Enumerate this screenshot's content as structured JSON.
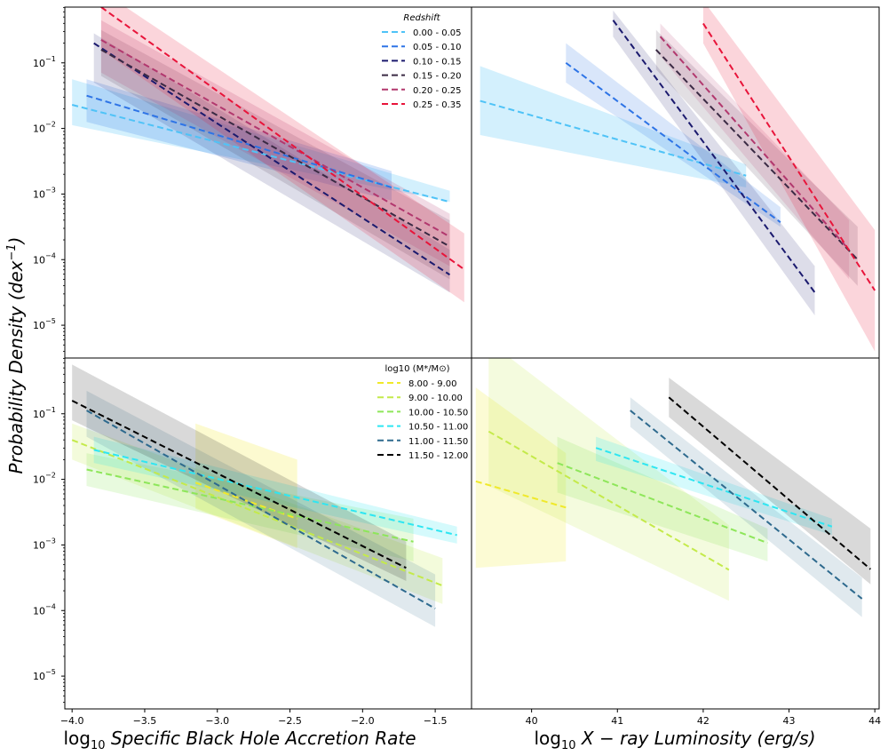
{
  "figure": {
    "ylabel_main": "Probability Density (dex",
    "ylabel_sup": "−1",
    "ylabel_close": ")",
    "xlabel_left_prefix": "log",
    "xlabel_left_sub": "10",
    "xlabel_left_text": " Specific Black Hole Accretion Rate",
    "xlabel_right_prefix": "log",
    "xlabel_right_sub": "10",
    "xlabel_right_text": " X − ray Luminosity (erg/s)"
  },
  "chart_data": [
    {
      "id": "tl",
      "type": "line",
      "xlim": [
        -4.05,
        -1.25
      ],
      "ylim_log10": [
        -5.5,
        -0.15
      ],
      "yticks_exp": [
        -5,
        -4,
        -3,
        -2,
        -1
      ],
      "xticks": [],
      "legend": {
        "title": "Redshift",
        "title_style": "italic",
        "location": "top-right",
        "entries": [
          "0.00 - 0.05",
          "0.05 - 0.10",
          "0.10 - 0.15",
          "0.15 - 0.20",
          "0.20 - 0.25",
          "0.25 - 0.35"
        ]
      },
      "series": [
        {
          "name": "0.00 - 0.05",
          "color": "#4fc3f7",
          "x": [
            -4.0,
            -1.4
          ],
          "log10_y": [
            -1.64,
            -3.12
          ],
          "band_lo": [
            -1.95,
            -3.12
          ],
          "band_hi": [
            -1.25,
            -2.95
          ],
          "band_alpha": 0.25
        },
        {
          "name": "0.05 - 0.10",
          "color": "#2e74e6",
          "x": [
            -3.9,
            -1.8
          ],
          "log10_y": [
            -1.5,
            -2.9
          ],
          "band_lo": [
            -1.9,
            -3.1
          ],
          "band_hi": [
            -1.25,
            -2.65
          ],
          "band_alpha": 0.2
        },
        {
          "name": "0.10 - 0.15",
          "color": "#1b1a6e",
          "x": [
            -3.85,
            -1.4
          ],
          "log10_y": [
            -0.7,
            -4.23
          ],
          "band_lo": [
            -1.3,
            -4.5
          ],
          "band_hi": [
            -0.55,
            -3.85
          ],
          "band_alpha": 0.15
        },
        {
          "name": "0.15 - 0.20",
          "color": "#3a2a44",
          "x": [
            -3.8,
            -1.4
          ],
          "log10_y": [
            -0.8,
            -3.8
          ],
          "band_lo": [
            -1.2,
            -4.3
          ],
          "band_hi": [
            -0.5,
            -3.4
          ],
          "band_alpha": 0.15
        },
        {
          "name": "0.20 - 0.25",
          "color": "#b2386e",
          "x": [
            -3.8,
            -1.4
          ],
          "log10_y": [
            -0.65,
            -3.65
          ],
          "band_lo": [
            -1.15,
            -4.1
          ],
          "band_hi": [
            -0.35,
            -3.3
          ],
          "band_alpha": 0.18
        },
        {
          "name": "0.25 - 0.35",
          "color": "#e8143a",
          "x": [
            -3.8,
            -1.3
          ],
          "log10_y": [
            -0.15,
            -4.15
          ],
          "band_lo": [
            -0.8,
            -4.65
          ],
          "band_hi": [
            0.1,
            -3.6
          ],
          "band_alpha": 0.18
        }
      ]
    },
    {
      "id": "tr",
      "type": "line",
      "xlim": [
        39.3,
        44.05
      ],
      "ylim_log10": [
        -5.5,
        -0.15
      ],
      "yticks_exp": [],
      "xticks": [],
      "series": [
        {
          "name": "0.00 - 0.05",
          "color": "#4fc3f7",
          "x": [
            39.4,
            42.5
          ],
          "log10_y": [
            -1.58,
            -2.72
          ],
          "band_lo": [
            -2.1,
            -2.9
          ],
          "band_hi": [
            -1.05,
            -2.55
          ],
          "band_alpha": 0.25
        },
        {
          "name": "0.05 - 0.10",
          "color": "#2e74e6",
          "x": [
            40.4,
            42.9
          ],
          "log10_y": [
            -1.0,
            -3.43
          ],
          "band_lo": [
            -1.3,
            -3.5
          ],
          "band_hi": [
            -0.7,
            -3.2
          ],
          "band_alpha": 0.18
        },
        {
          "name": "0.10 - 0.15",
          "color": "#1b1a6e",
          "x": [
            40.95,
            43.3
          ],
          "log10_y": [
            -0.35,
            -4.5
          ],
          "band_lo": [
            -0.6,
            -4.85
          ],
          "band_hi": [
            -0.2,
            -4.1
          ],
          "band_alpha": 0.15
        },
        {
          "name": "0.15 - 0.20",
          "color": "#3a2a44",
          "x": [
            41.45,
            43.8
          ],
          "log10_y": [
            -0.8,
            -4.0
          ],
          "band_lo": [
            -1.1,
            -4.4
          ],
          "band_hi": [
            -0.5,
            -3.5
          ],
          "band_alpha": 0.15
        },
        {
          "name": "0.20 - 0.25",
          "color": "#b2386e",
          "x": [
            41.5,
            43.7
          ],
          "log10_y": [
            -0.6,
            -3.85
          ],
          "band_lo": [
            -0.9,
            -4.3
          ],
          "band_hi": [
            -0.4,
            -3.4
          ],
          "band_alpha": 0.15
        },
        {
          "name": "0.25 - 0.35",
          "color": "#e8143a",
          "x": [
            42.0,
            44.0
          ],
          "log10_y": [
            -0.4,
            -4.47
          ],
          "band_lo": [
            -0.7,
            -5.4
          ],
          "band_hi": [
            -0.05,
            -3.55
          ],
          "band_alpha": 0.18
        }
      ]
    },
    {
      "id": "bl",
      "type": "line",
      "xlim": [
        -4.05,
        -1.25
      ],
      "ylim_log10": [
        -5.5,
        -0.15
      ],
      "yticks_exp": [
        -5,
        -4,
        -3,
        -2,
        -1
      ],
      "xticks": [
        -4.0,
        -3.5,
        -3.0,
        -2.5,
        -2.0,
        -1.5
      ],
      "xtick_labels": [
        "−4.0",
        "−3.5",
        "−3.0",
        "−2.5",
        "−2.0",
        "−1.5"
      ],
      "legend": {
        "title": "log10 (M*/M⊙)",
        "location": "top-right",
        "entries": [
          "8.00 - 9.00",
          "9.00 - 10.00",
          "10.00 - 10.50",
          "10.50 - 11.00",
          "11.00 - 11.50",
          "11.50 - 12.00"
        ]
      },
      "series": [
        {
          "name": "8.00 - 9.00",
          "color": "#f0e92a",
          "x": [
            -3.15,
            -2.45
          ],
          "log10_y": [
            -2.05,
            -2.6
          ],
          "band_lo": [
            -2.45,
            -3.05
          ],
          "band_hi": [
            -1.15,
            -1.7
          ],
          "band_alpha": 0.22
        },
        {
          "name": "9.00 - 10.00",
          "color": "#c4ea4a",
          "x": [
            -4.0,
            -1.45
          ],
          "log10_y": [
            -1.4,
            -3.62
          ],
          "band_lo": [
            -1.7,
            -3.9
          ],
          "band_hi": [
            -1.15,
            -3.2
          ],
          "band_alpha": 0.2
        },
        {
          "name": "10.00 - 10.50",
          "color": "#8ee65a",
          "x": [
            -3.9,
            -1.65
          ],
          "log10_y": [
            -1.85,
            -2.95
          ],
          "band_lo": [
            -2.1,
            -3.25
          ],
          "band_hi": [
            -1.6,
            -2.6
          ],
          "band_alpha": 0.2
        },
        {
          "name": "10.50 - 11.00",
          "color": "#2ee6f2",
          "x": [
            -3.85,
            -1.35
          ],
          "log10_y": [
            -1.55,
            -2.85
          ],
          "band_lo": [
            -1.75,
            -2.98
          ],
          "band_hi": [
            -1.35,
            -2.72
          ],
          "band_alpha": 0.2
        },
        {
          "name": "11.00 - 11.50",
          "color": "#2e6a8e",
          "x": [
            -3.9,
            -1.5
          ],
          "log10_y": [
            -0.95,
            -3.97
          ],
          "band_lo": [
            -1.35,
            -4.25
          ],
          "band_hi": [
            -0.65,
            -3.45
          ],
          "band_alpha": 0.15
        },
        {
          "name": "11.50 - 12.00",
          "color": "#000000",
          "x": [
            -4.0,
            -1.7
          ],
          "log10_y": [
            -0.8,
            -3.35
          ],
          "band_lo": [
            -1.1,
            -3.55
          ],
          "band_hi": [
            -0.25,
            -2.95
          ],
          "band_alpha": 0.15
        }
      ]
    },
    {
      "id": "br",
      "type": "line",
      "xlim": [
        39.3,
        44.05
      ],
      "ylim_log10": [
        -5.5,
        -0.15
      ],
      "yticks_exp": [],
      "xticks": [
        40,
        41,
        42,
        43,
        44
      ],
      "xtick_labels": [
        "40",
        "41",
        "42",
        "43",
        "44"
      ],
      "series": [
        {
          "name": "8.00 - 9.00",
          "color": "#f0e92a",
          "x": [
            39.35,
            40.4
          ],
          "log10_y": [
            -2.03,
            -2.43
          ],
          "band_lo": [
            -3.35,
            -3.25
          ],
          "band_hi": [
            -0.6,
            -1.6
          ],
          "band_alpha": 0.2
        },
        {
          "name": "9.00 - 10.00",
          "color": "#c4ea4a",
          "x": [
            39.5,
            42.3
          ],
          "log10_y": [
            -1.27,
            -3.38
          ],
          "band_lo": [
            -2.1,
            -3.85
          ],
          "band_hi": [
            0.1,
            -2.7
          ],
          "band_alpha": 0.18
        },
        {
          "name": "10.00 - 10.50",
          "color": "#8ee65a",
          "x": [
            40.3,
            42.75
          ],
          "log10_y": [
            -1.75,
            -2.97
          ],
          "band_lo": [
            -2.2,
            -3.25
          ],
          "band_hi": [
            -1.35,
            -2.75
          ],
          "band_alpha": 0.2
        },
        {
          "name": "10.50 - 11.00",
          "color": "#2ee6f2",
          "x": [
            40.75,
            43.5
          ],
          "log10_y": [
            -1.52,
            -2.72
          ],
          "band_lo": [
            -1.72,
            -2.85
          ],
          "band_hi": [
            -1.35,
            -2.6
          ],
          "band_alpha": 0.2
        },
        {
          "name": "11.00 - 11.50",
          "color": "#2e6a8e",
          "x": [
            41.15,
            43.85
          ],
          "log10_y": [
            -0.95,
            -3.82
          ],
          "band_lo": [
            -1.2,
            -4.1
          ],
          "band_hi": [
            -0.75,
            -3.5
          ],
          "band_alpha": 0.15
        },
        {
          "name": "11.50 - 12.00",
          "color": "#000000",
          "x": [
            41.6,
            43.95
          ],
          "log10_y": [
            -0.75,
            -3.37
          ],
          "band_lo": [
            -1.05,
            -3.6
          ],
          "band_hi": [
            -0.45,
            -2.75
          ],
          "band_alpha": 0.15
        }
      ]
    }
  ]
}
